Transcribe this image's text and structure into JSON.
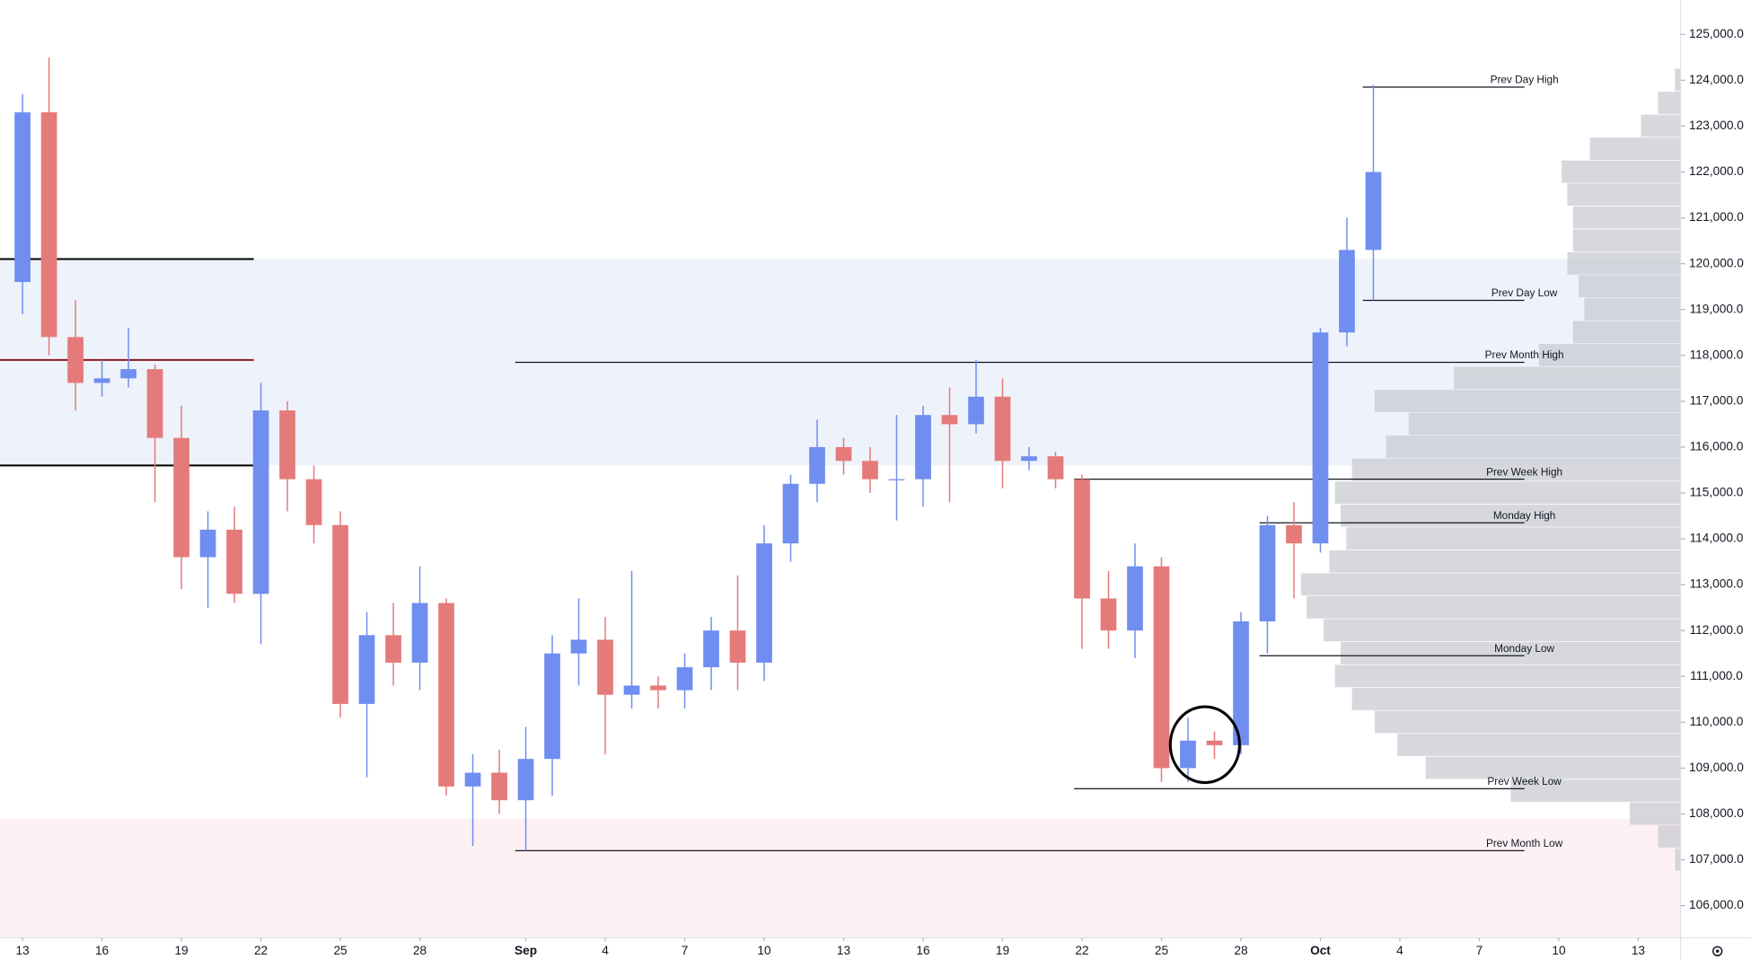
{
  "chart_data": {
    "type": "candlestick",
    "x": [
      0,
      1,
      2,
      3,
      4,
      5,
      6,
      7,
      8,
      9,
      10,
      11,
      12,
      13,
      14,
      15,
      16,
      17,
      18,
      19,
      20,
      21,
      22,
      23,
      24,
      25,
      26,
      27,
      28,
      29,
      30,
      31,
      32,
      33,
      34,
      35,
      36,
      37,
      38,
      39,
      40,
      41,
      42,
      43,
      44,
      45,
      46,
      47,
      48,
      49,
      50,
      51
    ],
    "open": [
      119600,
      123300,
      118400,
      117400,
      117500,
      117700,
      116200,
      113600,
      114200,
      112800,
      116800,
      115300,
      114300,
      110400,
      111900,
      111300,
      112600,
      108600,
      108900,
      108300,
      109200,
      111500,
      111800,
      110600,
      110800,
      110700,
      111200,
      112000,
      111300,
      113900,
      115200,
      116000,
      115700,
      115300,
      115300,
      116700,
      116500,
      117100,
      115700,
      115800,
      115300,
      112700,
      112000,
      113400,
      109000,
      109600,
      109500,
      112200,
      114300,
      113900,
      118500,
      120300
    ],
    "high": [
      123700,
      124500,
      119200,
      117900,
      118600,
      117800,
      116900,
      114600,
      114700,
      117400,
      117000,
      115600,
      114600,
      112400,
      112600,
      113400,
      112700,
      109300,
      109400,
      109900,
      111900,
      112700,
      112300,
      113300,
      111000,
      111500,
      112300,
      113200,
      114300,
      115400,
      116600,
      116200,
      116000,
      116700,
      116900,
      117300,
      117900,
      117500,
      116000,
      115900,
      115400,
      113300,
      113900,
      113600,
      110100,
      109800,
      112400,
      114500,
      114800,
      118600,
      121000,
      123900
    ],
    "low": [
      118900,
      118000,
      116800,
      117100,
      117300,
      114800,
      112900,
      112500,
      112600,
      111700,
      114600,
      113900,
      110100,
      108800,
      110800,
      110700,
      108400,
      107300,
      108000,
      107200,
      108400,
      110800,
      109300,
      110300,
      110300,
      110300,
      110700,
      110700,
      110900,
      113500,
      114800,
      115400,
      115000,
      114400,
      114700,
      114800,
      116300,
      115100,
      115500,
      115100,
      111600,
      111600,
      111400,
      108700,
      108700,
      109200,
      109300,
      111500,
      112700,
      113700,
      118200,
      119200
    ],
    "close": [
      123300,
      118400,
      117400,
      117500,
      117700,
      116200,
      113600,
      114200,
      112800,
      116800,
      115300,
      114300,
      110400,
      111900,
      111300,
      112600,
      108600,
      108900,
      108300,
      109200,
      111500,
      111800,
      110600,
      110800,
      110700,
      111200,
      112000,
      111300,
      113900,
      115200,
      116000,
      115700,
      115300,
      115300,
      116700,
      116500,
      117100,
      115700,
      115800,
      115300,
      112700,
      112000,
      113400,
      109000,
      109600,
      109500,
      112200,
      114300,
      113900,
      118500,
      120300,
      122000
    ],
    "up_color": "#6f8ef0",
    "down_color": "#e57a7a",
    "xlim": [
      -0.85,
      62.6
    ],
    "xticks": [
      {
        "value": 0,
        "label": "13"
      },
      {
        "value": 3,
        "label": "16"
      },
      {
        "value": 6,
        "label": "19"
      },
      {
        "value": 9,
        "label": "22"
      },
      {
        "value": 12,
        "label": "25"
      },
      {
        "value": 15,
        "label": "28"
      },
      {
        "value": 19,
        "label": "Sep"
      },
      {
        "value": 22,
        "label": "4"
      },
      {
        "value": 25,
        "label": "7"
      },
      {
        "value": 28,
        "label": "10"
      },
      {
        "value": 31,
        "label": "13"
      },
      {
        "value": 34,
        "label": "16"
      },
      {
        "value": 37,
        "label": "19"
      },
      {
        "value": 40,
        "label": "22"
      },
      {
        "value": 43,
        "label": "25"
      },
      {
        "value": 46,
        "label": "28"
      },
      {
        "value": 49,
        "label": "Oct"
      },
      {
        "value": 52,
        "label": "4"
      },
      {
        "value": 55,
        "label": "7"
      },
      {
        "value": 58,
        "label": "10"
      },
      {
        "value": 61,
        "label": "13"
      }
    ],
    "ylim": [
      105300,
      125750
    ],
    "yticks": [
      {
        "value": 106000,
        "label": "106,000.0"
      },
      {
        "value": 107000,
        "label": "107,000.0"
      },
      {
        "value": 108000,
        "label": "108,000.0"
      },
      {
        "value": 109000,
        "label": "109,000.0"
      },
      {
        "value": 110000,
        "label": "110,000.0"
      },
      {
        "value": 111000,
        "label": "111,000.0"
      },
      {
        "value": 112000,
        "label": "112,000.0"
      },
      {
        "value": 113000,
        "label": "113,000.0"
      },
      {
        "value": 114000,
        "label": "114,000.0"
      },
      {
        "value": 115000,
        "label": "115,000.0"
      },
      {
        "value": 116000,
        "label": "116,000.0"
      },
      {
        "value": 117000,
        "label": "117,000.0"
      },
      {
        "value": 118000,
        "label": "118,000.0"
      },
      {
        "value": 119000,
        "label": "119,000.0"
      },
      {
        "value": 120000,
        "label": "120,000.0"
      },
      {
        "value": 121000,
        "label": "121,000.0"
      },
      {
        "value": 122000,
        "label": "122,000.0"
      },
      {
        "value": 123000,
        "label": "123,000.0"
      },
      {
        "value": 124000,
        "label": "124,000.0"
      },
      {
        "value": 125000,
        "label": "125,000.0"
      }
    ],
    "zones": [
      {
        "from": 115600,
        "to": 120100,
        "color": "#eef2fb"
      },
      {
        "from": 105300,
        "to": 107900,
        "color": "#fdf1f4"
      }
    ],
    "levels": [
      {
        "label": "Prev Day High",
        "value": 123850,
        "start": 50.6,
        "end": 56.7
      },
      {
        "label": "Prev Day Low",
        "value": 119200,
        "start": 50.6,
        "end": 56.7
      },
      {
        "label": "Prev Month High",
        "value": 117850,
        "start": 18.6,
        "end": 56.7
      },
      {
        "label": "Prev Week High",
        "value": 115300,
        "start": 39.7,
        "end": 56.7
      },
      {
        "label": "Monday High",
        "value": 114350,
        "start": 46.7,
        "end": 56.7
      },
      {
        "label": "Monday Low",
        "value": 111450,
        "start": 46.7,
        "end": 56.7
      },
      {
        "label": "Prev Week Low",
        "value": 108550,
        "start": 39.7,
        "end": 56.7
      },
      {
        "label": "Prev Month Low",
        "value": 107200,
        "start": 18.6,
        "end": 56.7
      }
    ],
    "lines": [
      {
        "value": 120100,
        "start": -0.85,
        "end": 8.73,
        "color": "#000000"
      },
      {
        "value": 117900,
        "start": -0.85,
        "end": 8.73,
        "color": "#8b1a1a"
      },
      {
        "value": 115600,
        "start": -0.85,
        "end": 8.73,
        "color": "#000000"
      }
    ],
    "volume_profile": {
      "prices": [
        107000,
        107500,
        108000,
        108500,
        109000,
        109500,
        110000,
        110500,
        111000,
        111500,
        112000,
        112500,
        113000,
        113500,
        114000,
        114500,
        115000,
        115500,
        116000,
        116500,
        117000,
        117500,
        118000,
        118500,
        119000,
        119500,
        120000,
        120500,
        121000,
        121500,
        122000,
        122500,
        123000,
        123500,
        124000
      ],
      "volumes": [
        5,
        20,
        45,
        150,
        225,
        250,
        270,
        290,
        305,
        300,
        315,
        330,
        335,
        310,
        295,
        300,
        305,
        290,
        260,
        240,
        270,
        200,
        125,
        95,
        85,
        90,
        100,
        95,
        95,
        100,
        105,
        80,
        35,
        20,
        5
      ],
      "bin": 500,
      "color": "#c9cbd1"
    }
  }
}
